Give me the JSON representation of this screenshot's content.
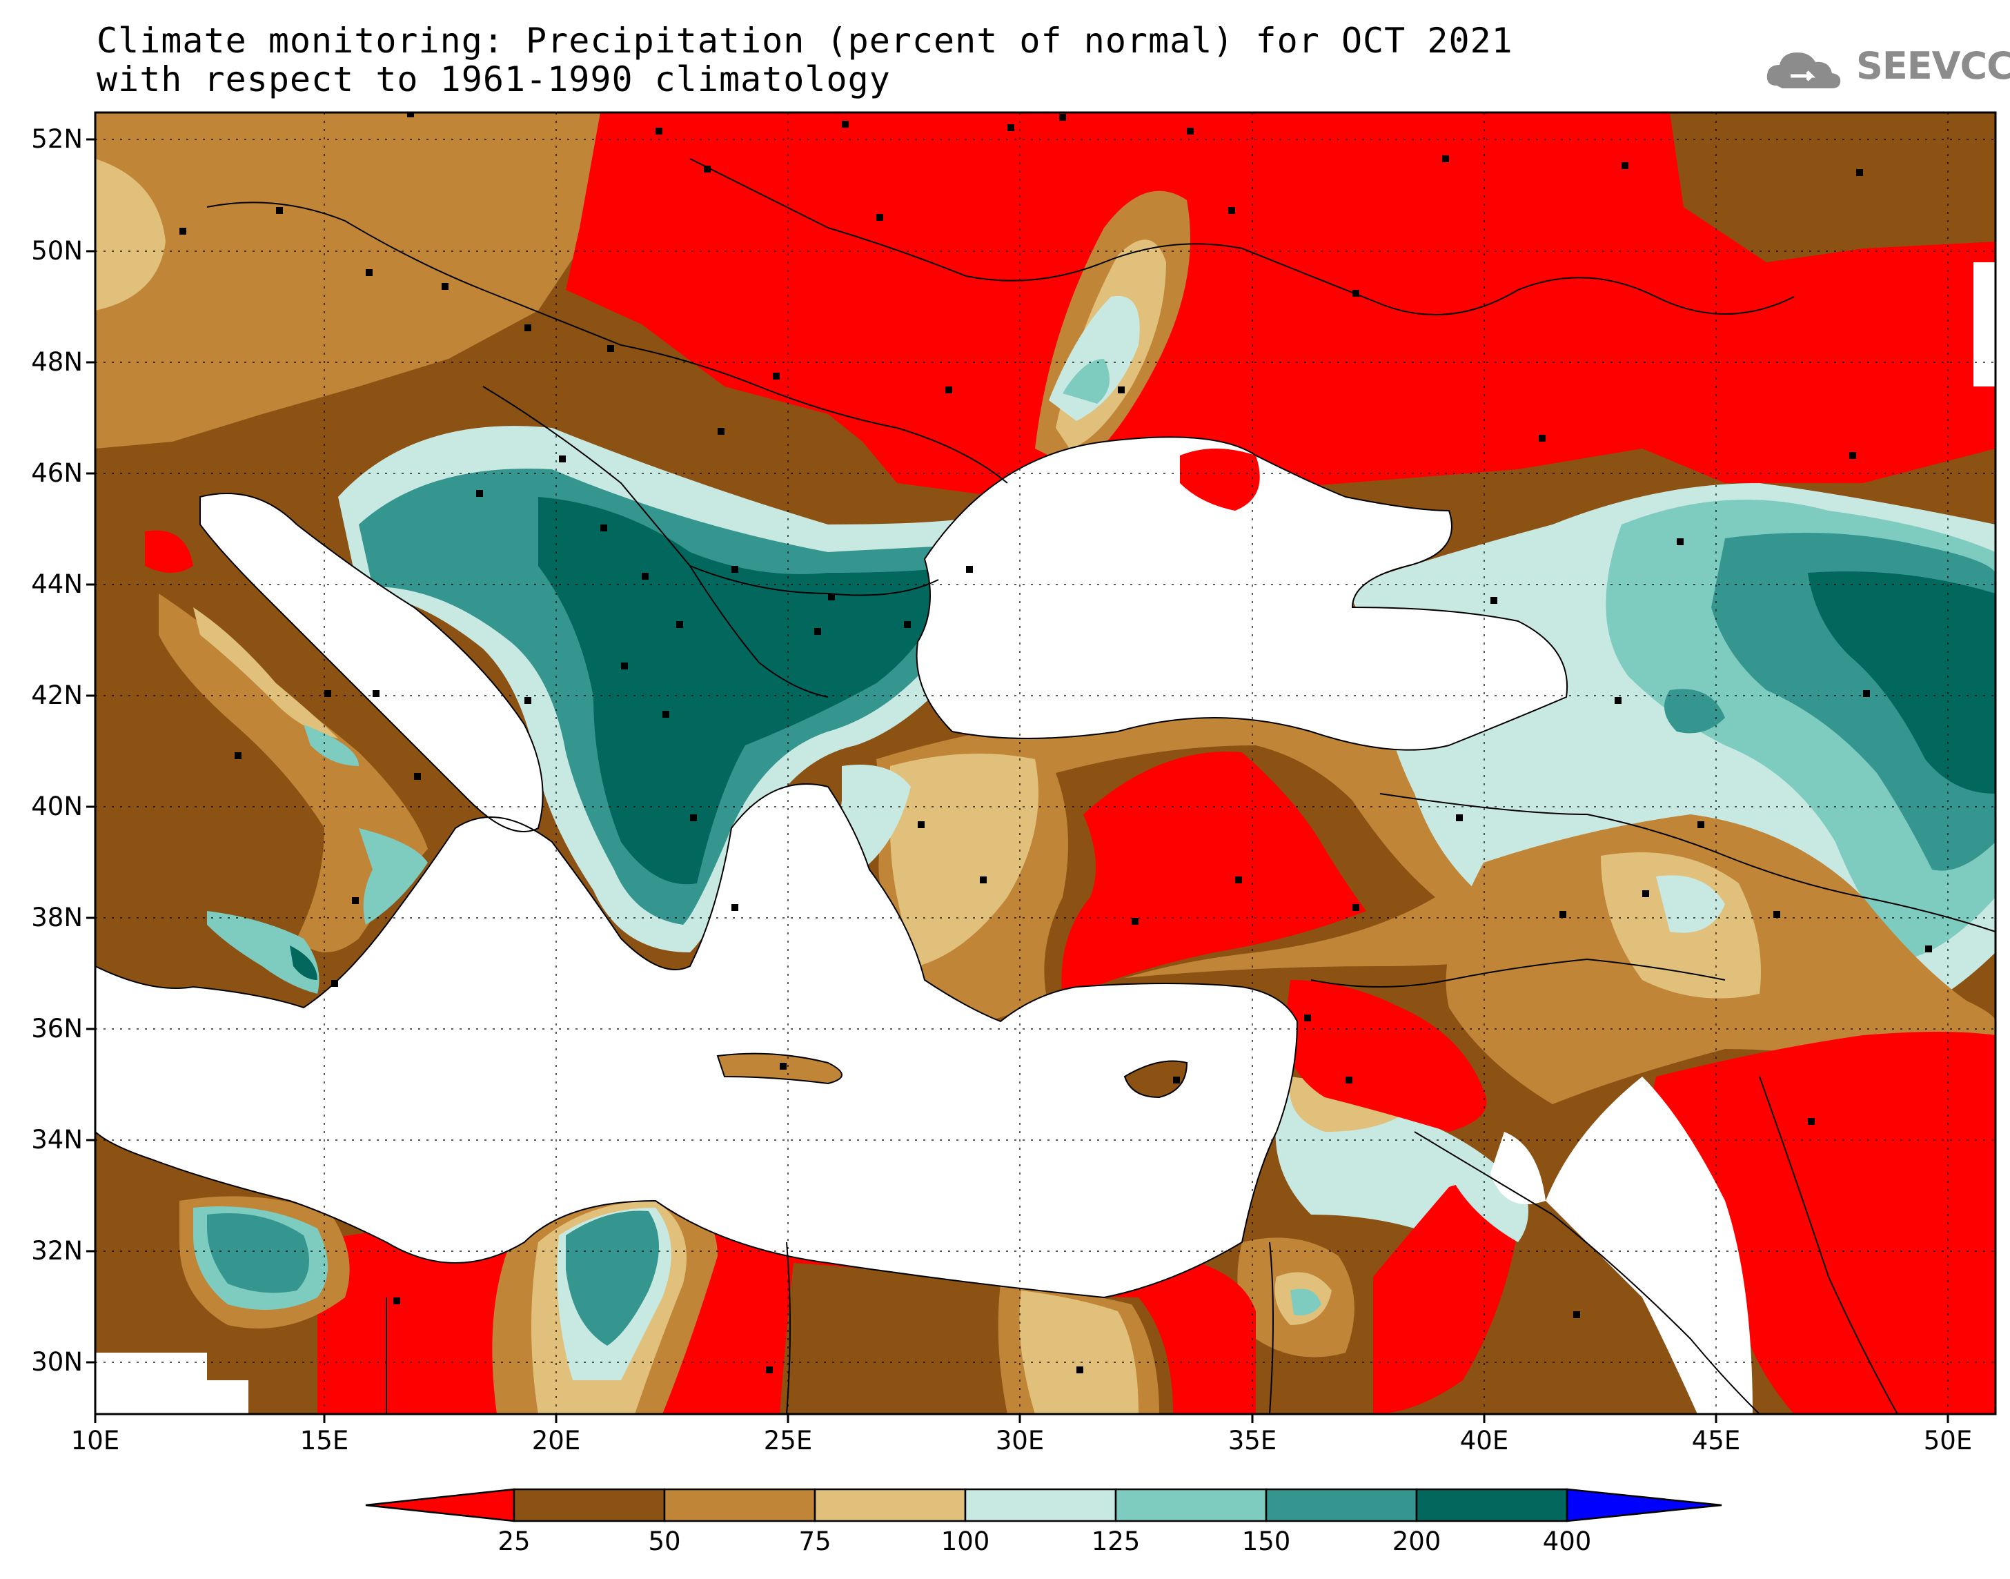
{
  "header": {
    "title_line1": "Climate monitoring: Precipitation (percent of normal) for OCT 2021",
    "title_line2": "with respect to 1961-1990 climatology",
    "logo_text": "SEEVCCC"
  },
  "axes": {
    "lat_labels": [
      "52N",
      "50N",
      "48N",
      "46N",
      "44N",
      "42N",
      "40N",
      "38N",
      "36N",
      "34N",
      "32N",
      "30N"
    ],
    "lon_labels": [
      "10E",
      "15E",
      "20E",
      "25E",
      "30E",
      "35E",
      "40E",
      "45E",
      "50E"
    ]
  },
  "colorbar": {
    "labels": [
      "25",
      "50",
      "75",
      "100",
      "125",
      "150",
      "200",
      "400"
    ],
    "colors": [
      "#ff0000",
      "#8b5214",
      "#c08537",
      "#e0c07a",
      "#c8e9e2",
      "#7ecbbf",
      "#35968f",
      "#02675d",
      "#0000ff"
    ]
  },
  "colors": {
    "land_outside": "#ffffff",
    "sea": "#ffffff",
    "station": "#000000"
  }
}
